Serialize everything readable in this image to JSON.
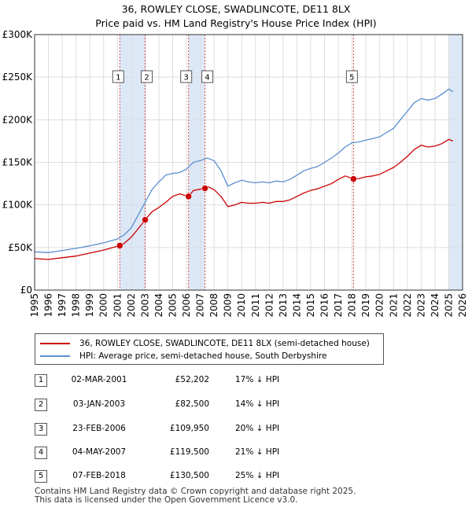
{
  "chart_data": {
    "type": "line",
    "title": "36, ROWLEY CLOSE, SWADLINCOTE, DE11 8LX",
    "subtitle": "Price paid vs. HM Land Registry's House Price Index (HPI)",
    "xlim": [
      1995,
      2026
    ],
    "ylim": [
      0,
      300000
    ],
    "x_ticks": [
      1995,
      1996,
      1997,
      1998,
      1999,
      2000,
      2001,
      2002,
      2003,
      2004,
      2005,
      2006,
      2007,
      2008,
      2009,
      2010,
      2011,
      2012,
      2013,
      2014,
      2015,
      2016,
      2017,
      2018,
      2019,
      2020,
      2021,
      2022,
      2023,
      2024,
      2025,
      2026
    ],
    "y_ticks": [
      {
        "value": 0,
        "label": "£0"
      },
      {
        "value": 50000,
        "label": "£50K"
      },
      {
        "value": 100000,
        "label": "£100K"
      },
      {
        "value": 150000,
        "label": "£150K"
      },
      {
        "value": 200000,
        "label": "£200K"
      },
      {
        "value": 250000,
        "label": "£250K"
      },
      {
        "value": 300000,
        "label": "£300K"
      }
    ],
    "grid": true,
    "colors": {
      "property": "#cc0000",
      "hpi": "#5b8fd0",
      "shade": "#dde8f7",
      "event_line": "#cc0000"
    },
    "series": [
      {
        "name": "HPI: Average price, semi-detached house, South Derbyshire",
        "color": "#5b8fd0",
        "x": [
          1995,
          1996,
          1997,
          1998,
          1999,
          2000,
          2001,
          2001.5,
          2002,
          2002.5,
          2003,
          2003.5,
          2004,
          2004.5,
          2005,
          2005.5,
          2006,
          2006.5,
          2007,
          2007.5,
          2008,
          2008.5,
          2009,
          2009.5,
          2010,
          2010.5,
          2011,
          2011.5,
          2012,
          2012.5,
          2013,
          2013.5,
          2014,
          2014.5,
          2015,
          2015.5,
          2016,
          2016.5,
          2017,
          2017.5,
          2018,
          2018.5,
          2019,
          2019.5,
          2020,
          2020.5,
          2021,
          2021.5,
          2022,
          2022.5,
          2023,
          2023.5,
          2024,
          2024.5,
          2025,
          2025.3
        ],
        "values": [
          45000,
          44000,
          46500,
          49000,
          52000,
          55500,
          60000,
          65000,
          73000,
          88000,
          103000,
          118000,
          127000,
          135000,
          137000,
          138000,
          142000,
          150000,
          152000,
          155000,
          152000,
          140000,
          122000,
          126000,
          129000,
          127000,
          126000,
          127000,
          126000,
          128000,
          127000,
          130000,
          135000,
          140000,
          143000,
          145000,
          150000,
          155000,
          161000,
          168000,
          173000,
          174000,
          176000,
          178000,
          180000,
          185000,
          190000,
          200000,
          210000,
          220000,
          225000,
          223000,
          225000,
          230000,
          236000,
          233000
        ]
      },
      {
        "name": "36, ROWLEY CLOSE, SWADLINCOTE, DE11 8LX (semi-detached house)",
        "color": "#cc0000",
        "x": [
          1995,
          1996,
          1997,
          1998,
          1999,
          2000,
          2001.17,
          2001.5,
          2002,
          2002.5,
          2003.01,
          2003.5,
          2004,
          2004.5,
          2005,
          2005.5,
          2006.15,
          2006.5,
          2007.34,
          2007.6,
          2008,
          2008.5,
          2009,
          2009.5,
          2010,
          2010.5,
          2011,
          2011.5,
          2012,
          2012.5,
          2013,
          2013.5,
          2014,
          2014.5,
          2015,
          2015.5,
          2016,
          2016.5,
          2017,
          2017.5,
          2018.1,
          2018.5,
          2019,
          2019.5,
          2020,
          2020.5,
          2021,
          2021.5,
          2022,
          2022.5,
          2023,
          2023.5,
          2024,
          2024.5,
          2025,
          2025.3
        ],
        "values": [
          37000,
          36000,
          38000,
          40000,
          43500,
          47000,
          52202,
          55000,
          62000,
          72000,
          82500,
          92000,
          97000,
          103000,
          110000,
          113000,
          109950,
          117000,
          119500,
          121000,
          118000,
          110000,
          98000,
          100000,
          103000,
          102000,
          102000,
          103000,
          102000,
          104000,
          104000,
          106000,
          110000,
          114000,
          117000,
          119000,
          122000,
          125000,
          130000,
          134000,
          130500,
          131000,
          133000,
          134000,
          136000,
          140000,
          144000,
          150000,
          157000,
          165000,
          170000,
          168000,
          169000,
          172000,
          177000,
          175000
        ]
      }
    ],
    "sales": [
      {
        "id": "1",
        "x": 2001.17,
        "value": 52202,
        "date": "02-MAR-2001",
        "price": "£52,202",
        "hpi": "17% ↓ HPI"
      },
      {
        "id": "2",
        "x": 2003.01,
        "value": 82500,
        "date": "03-JAN-2003",
        "price": "£82,500",
        "hpi": "14% ↓ HPI"
      },
      {
        "id": "3",
        "x": 2006.15,
        "value": 109950,
        "date": "23-FEB-2006",
        "price": "£109,950",
        "hpi": "20% ↓ HPI"
      },
      {
        "id": "4",
        "x": 2007.34,
        "value": 119500,
        "date": "04-MAY-2007",
        "price": "£119,500",
        "hpi": "21% ↓ HPI"
      },
      {
        "id": "5",
        "x": 2018.1,
        "value": 130500,
        "date": "07-FEB-2018",
        "price": "£130,500",
        "hpi": "25% ↓ HPI"
      }
    ],
    "shaded_ranges": [
      [
        2001.17,
        2003.01
      ],
      [
        2006.15,
        2007.34
      ],
      [
        2025.0,
        2026.0
      ]
    ]
  },
  "legend": {
    "property_label": "36, ROWLEY CLOSE, SWADLINCOTE, DE11 8LX (semi-detached house)",
    "hpi_label": "HPI: Average price, semi-detached house, South Derbyshire"
  },
  "footer": {
    "line1": "Contains HM Land Registry data © Crown copyright and database right 2025.",
    "line2": "This data is licensed under the Open Government Licence v3.0."
  }
}
